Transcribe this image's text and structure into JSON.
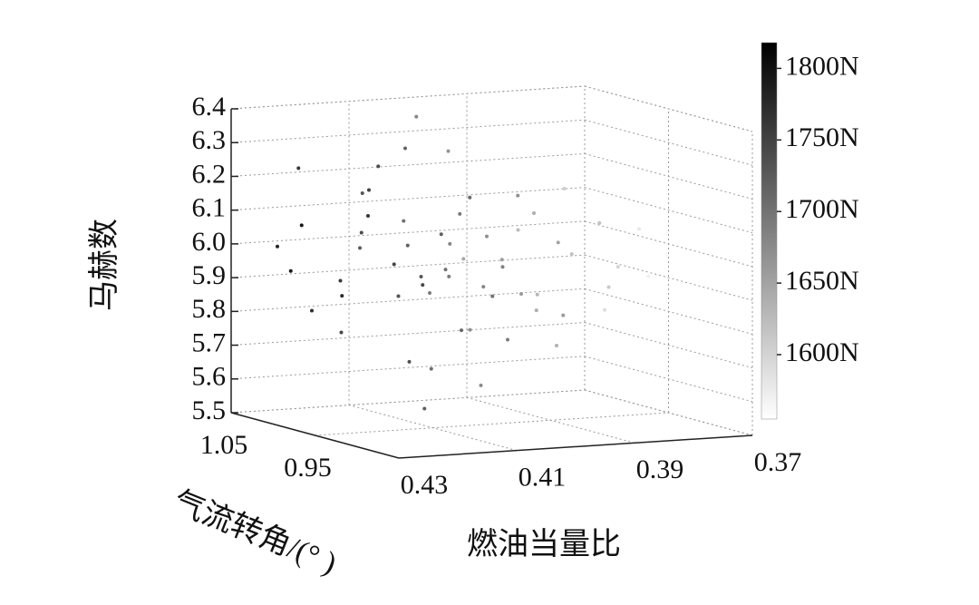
{
  "chart_data": {
    "type": "scatter3d",
    "xlabel": "燃油当量比",
    "ylabel": "气流转角/(° )",
    "zlabel": "马赫数",
    "xlim": [
      0.37,
      0.43
    ],
    "xticks": [
      0.43,
      0.41,
      0.39,
      0.37
    ],
    "ylim": [
      0.85,
      1.05
    ],
    "yticks": [
      0.95,
      1.05
    ],
    "zlim": [
      5.5,
      6.4
    ],
    "zticks": [
      {
        "value": 5.5,
        "label": "5.5"
      },
      5.6,
      5.7,
      5.8,
      5.9,
      {
        "value": 6,
        "label": "6.0"
      },
      6.1,
      6.2,
      6.3,
      6.4
    ],
    "grid": true,
    "colormap": [
      "#ffffff",
      "#000000"
    ],
    "clim": [
      1555,
      1818
    ],
    "cticks": [
      {
        "value": 1600,
        "label": "1600N"
      },
      {
        "value": 1650,
        "label": "1650N"
      },
      {
        "value": 1700,
        "label": "1700N"
      },
      {
        "value": 1750,
        "label": "1750N"
      },
      {
        "value": 1800,
        "label": "1800N"
      }
    ],
    "x": [
      0.405,
      0.41,
      0.4,
      0.415,
      0.395,
      0.42,
      0.39,
      0.408,
      0.412,
      0.398,
      0.385,
      0.418,
      0.402,
      0.425,
      0.38,
      0.393,
      0.407,
      0.414,
      0.396,
      0.422,
      0.388,
      0.404,
      0.41,
      0.4,
      0.375,
      0.383,
      0.416,
      0.428,
      0.392,
      0.406,
      0.413,
      0.397,
      0.42,
      0.403,
      0.387,
      0.409,
      0.399,
      0.378,
      0.418,
      0.424,
      0.394,
      0.411,
      0.401,
      0.386,
      0.417,
      0.372,
      0.405,
      0.395,
      0.421,
      0.389,
      0.41,
      0.4,
      0.415,
      0.382,
      0.408,
      0.427,
      0.391,
      0.403,
      0.412,
      0.398
    ],
    "y": [
      0.97,
      0.98,
      0.96,
      1.0,
      0.95,
      0.99,
      0.97,
      0.93,
      1.02,
      0.99,
      0.96,
      0.97,
      1.01,
      1.03,
      0.94,
      0.92,
      0.9,
      0.95,
      1.03,
      1.01,
      0.98,
      0.96,
      0.94,
      1.0,
      0.95,
      0.93,
      0.92,
      0.98,
      1.04,
      0.98,
      0.97,
      0.94,
      1.04,
      0.91,
      1.01,
      0.99,
      0.97,
      0.97,
      0.94,
      0.96,
      0.98,
      1.03,
      0.93,
      0.92,
      1.01,
      0.96,
      1.02,
      0.9,
      0.95,
      0.95,
      0.96,
      1.04,
      0.98,
      0.99,
      0.92,
      1.0,
      0.96,
      0.98,
      0.95,
      0.97
    ],
    "z": [
      5.95,
      6.02,
      5.9,
      6.05,
      5.88,
      5.92,
      6.1,
      5.8,
      6.15,
      5.75,
      5.98,
      6.2,
      5.85,
      6.0,
      5.95,
      6.05,
      5.92,
      5.7,
      6.25,
      5.82,
      5.85,
      6.12,
      6.08,
      6.0,
      6.05,
      5.9,
      5.95,
      6.1,
      5.92,
      5.65,
      5.88,
      6.18,
      6.22,
      5.78,
      6.02,
      6.3,
      5.6,
      5.8,
      6.0,
      5.9,
      5.96,
      5.98,
      5.98,
      6.1,
      5.75,
      5.9,
      6.06,
      5.85,
      6.14,
      5.72,
      5.55,
      6.35,
      6.26,
      6.15,
      6.2,
      5.95,
      5.82,
      5.92,
      5.95,
      6.04
    ],
    "values": [
      1700,
      1720,
      1680,
      1740,
      1660,
      1760,
      1640,
      1710,
      1730,
      1670,
      1620,
      1750,
      1690,
      1780,
      1600,
      1650,
      1700,
      1735,
      1665,
      1770,
      1630,
      1695,
      1720,
      1680,
      1580,
      1610,
      1745,
      1795,
      1645,
      1705,
      1730,
      1670,
      1760,
      1690,
      1625,
      1715,
      1675,
      1590,
      1750,
      1775,
      1655,
      1725,
      1685,
      1620,
      1745,
      1570,
      1700,
      1660,
      1765,
      1635,
      1720,
      1680,
      1740,
      1605,
      1710,
      1790,
      1640,
      1690,
      1728,
      1672
    ]
  }
}
